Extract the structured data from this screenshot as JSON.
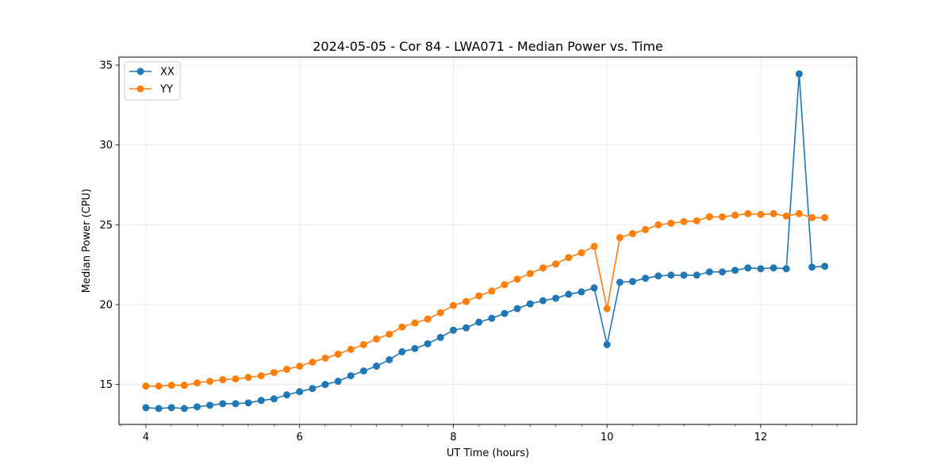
{
  "chart_data": {
    "type": "line",
    "title": "2024-05-05 - Cor 84 - LWA071 - Median Power vs. Time",
    "xlabel": "UT Time (hours)",
    "ylabel": "Median Power (CPU)",
    "xlim": [
      3.65,
      13.25
    ],
    "ylim": [
      12.5,
      35.5
    ],
    "xticks": [
      4,
      6,
      8,
      10,
      12
    ],
    "xticks_minor": [
      3.67,
      4.33,
      4.67,
      5,
      5.33,
      5.67,
      6.33,
      6.67,
      7,
      7.33,
      7.67,
      8.33,
      8.67,
      9,
      9.33,
      9.67,
      10.33,
      10.67,
      11,
      11.33,
      11.67,
      12.33,
      12.67,
      13
    ],
    "yticks": [
      15,
      20,
      25,
      30,
      35
    ],
    "grid": true,
    "legend_position": "top-left",
    "x": [
      4.0,
      4.167,
      4.333,
      4.5,
      4.667,
      4.833,
      5.0,
      5.167,
      5.333,
      5.5,
      5.667,
      5.833,
      6.0,
      6.167,
      6.333,
      6.5,
      6.667,
      6.833,
      7.0,
      7.167,
      7.333,
      7.5,
      7.667,
      7.833,
      8.0,
      8.167,
      8.333,
      8.5,
      8.667,
      8.833,
      9.0,
      9.167,
      9.333,
      9.5,
      9.667,
      9.833,
      10.0,
      10.167,
      10.333,
      10.5,
      10.667,
      10.833,
      11.0,
      11.167,
      11.333,
      11.5,
      11.667,
      11.833,
      12.0,
      12.167,
      12.333,
      12.5,
      12.667,
      12.833
    ],
    "series": [
      {
        "name": "XX",
        "color": "#1f77b4",
        "values": [
          13.55,
          13.5,
          13.55,
          13.5,
          13.6,
          13.7,
          13.8,
          13.8,
          13.85,
          14.0,
          14.1,
          14.35,
          14.55,
          14.75,
          15.0,
          15.2,
          15.55,
          15.85,
          16.15,
          16.55,
          17.05,
          17.25,
          17.55,
          17.95,
          18.4,
          18.55,
          18.9,
          19.15,
          19.45,
          19.75,
          20.05,
          20.25,
          20.4,
          20.65,
          20.8,
          21.05,
          17.5,
          21.4,
          21.45,
          21.65,
          21.8,
          21.85,
          21.85,
          21.85,
          22.05,
          22.05,
          22.15,
          22.3,
          22.25,
          22.3,
          22.25,
          34.45,
          22.35,
          22.4
        ]
      },
      {
        "name": "YY",
        "color": "#ff7f0e",
        "values": [
          14.9,
          14.9,
          14.95,
          14.95,
          15.1,
          15.2,
          15.3,
          15.35,
          15.45,
          15.55,
          15.75,
          15.95,
          16.15,
          16.4,
          16.65,
          16.9,
          17.2,
          17.5,
          17.85,
          18.15,
          18.6,
          18.85,
          19.1,
          19.5,
          19.95,
          20.2,
          20.55,
          20.85,
          21.25,
          21.6,
          21.95,
          22.3,
          22.55,
          22.95,
          23.25,
          23.65,
          19.75,
          24.2,
          24.45,
          24.7,
          25.0,
          25.1,
          25.2,
          25.25,
          25.5,
          25.5,
          25.6,
          25.7,
          25.65,
          25.7,
          25.55,
          25.7,
          25.45,
          25.45
        ]
      }
    ]
  }
}
